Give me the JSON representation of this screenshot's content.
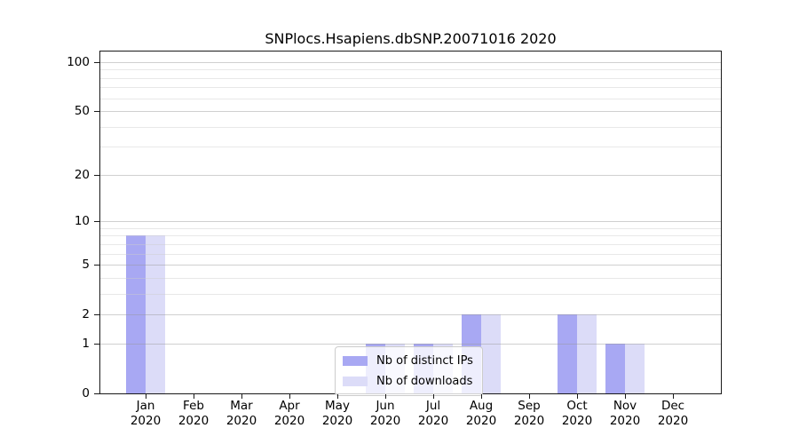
{
  "chart_data": {
    "type": "bar",
    "title": "SNPlocs.Hsapiens.dbSNP.20071016 2020",
    "categories": [
      "Jan",
      "Feb",
      "Mar",
      "Apr",
      "May",
      "Jun",
      "Jul",
      "Aug",
      "Sep",
      "Oct",
      "Nov",
      "Dec"
    ],
    "category_year": "2020",
    "series": [
      {
        "name": "Nb of distinct IPs",
        "color": "#a8a8f3",
        "values": [
          8,
          0,
          0,
          0,
          0,
          1,
          1,
          2,
          0,
          2,
          1,
          0
        ]
      },
      {
        "name": "Nb of downloads",
        "color": "#dcdcf8",
        "values": [
          8,
          0,
          0,
          0,
          0,
          1,
          1,
          2,
          0,
          2,
          1,
          0
        ]
      }
    ],
    "yscale": "log1p",
    "yticks": [
      0,
      1,
      2,
      5,
      10,
      20,
      50,
      100
    ],
    "minor_gridlines": [
      3,
      4,
      6,
      7,
      8,
      9,
      30,
      40,
      60,
      70,
      80,
      90
    ],
    "ylim": [
      0,
      116
    ],
    "grid": "horizontal",
    "legend_position": "inside-lower-center"
  }
}
